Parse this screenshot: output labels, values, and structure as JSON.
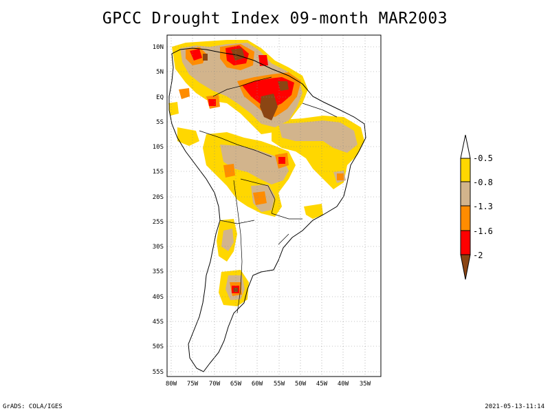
{
  "title": "GPCC Drought Index 09-month MAR2003",
  "footer": {
    "left": "GrADS: COLA/IGES",
    "right": "2021-05-13-11:14"
  },
  "map": {
    "lon_range": [
      -80,
      -31
    ],
    "lat_range": [
      -56,
      11
    ],
    "lon_ticks": [
      "80W",
      "75W",
      "70W",
      "65W",
      "60W",
      "55W",
      "50W",
      "45W",
      "40W",
      "35W"
    ],
    "lat_ticks": [
      "10N",
      "5N",
      "EQ",
      "5S",
      "10S",
      "15S",
      "20S",
      "25S",
      "30S",
      "35S",
      "40S",
      "45S",
      "50S",
      "55S"
    ]
  },
  "legend": {
    "labels": [
      "-0.5",
      "-0.8",
      "-1.3",
      "-1.6",
      "-2"
    ],
    "colors": {
      "white": "#ffffff",
      "yellow": "#ffd700",
      "tan": "#d2b48c",
      "orange": "#ff8c00",
      "red": "#ff0000",
      "brown": "#8b4513"
    }
  }
}
